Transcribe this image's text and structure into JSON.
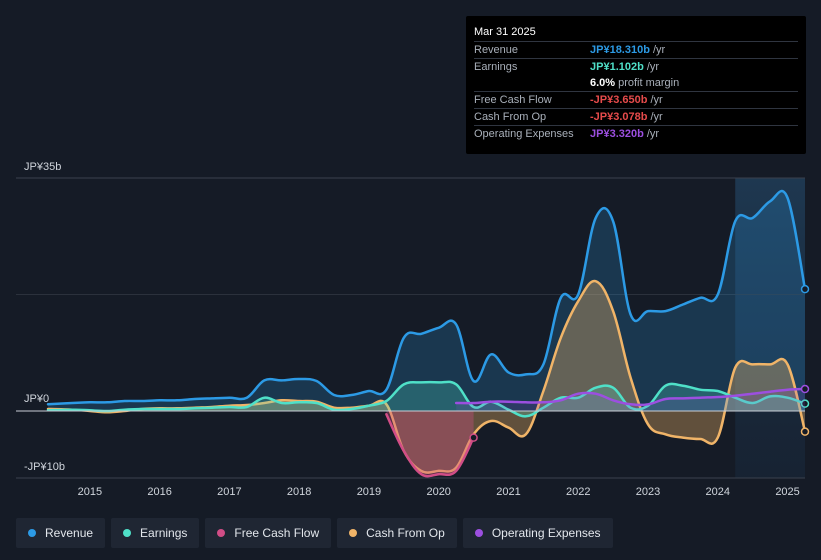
{
  "chart_data": {
    "type": "area",
    "title": "",
    "y_unit_labels": [
      "JP¥35b",
      "JP¥0",
      "-JP¥10b"
    ],
    "ylim": [
      -10,
      35
    ],
    "x_ticks": [
      "2015",
      "2016",
      "2017",
      "2018",
      "2019",
      "2020",
      "2021",
      "2022",
      "2023",
      "2024",
      "2025"
    ],
    "x_tick_values": [
      2015,
      2016,
      2017,
      2018,
      2019,
      2020,
      2021,
      2022,
      2023,
      2024,
      2025
    ],
    "xlim": [
      2014.4,
      2025.25
    ],
    "highlight_start": 2024.25,
    "series": [
      {
        "name": "Revenue",
        "color": "#2c9ae5",
        "fill": true,
        "x": [
          2014.4,
          2014.75,
          2015.0,
          2015.25,
          2015.5,
          2015.75,
          2016.0,
          2016.25,
          2016.5,
          2016.75,
          2017.0,
          2017.25,
          2017.5,
          2017.75,
          2018.0,
          2018.25,
          2018.5,
          2018.75,
          2019.0,
          2019.25,
          2019.5,
          2019.75,
          2020.0,
          2020.25,
          2020.5,
          2020.75,
          2021.0,
          2021.25,
          2021.5,
          2021.75,
          2022.0,
          2022.25,
          2022.5,
          2022.75,
          2023.0,
          2023.25,
          2023.5,
          2023.75,
          2024.0,
          2024.25,
          2024.5,
          2024.75,
          2025.0,
          2025.25
        ],
        "values": [
          1.0,
          1.2,
          1.3,
          1.3,
          1.5,
          1.5,
          1.6,
          1.6,
          1.8,
          1.9,
          2.0,
          2.0,
          4.6,
          4.6,
          4.8,
          4.5,
          2.4,
          2.4,
          3.0,
          3.2,
          11.0,
          11.6,
          12.5,
          13.0,
          4.5,
          8.5,
          5.8,
          5.5,
          7.0,
          17.0,
          17.5,
          29.0,
          28.5,
          14.5,
          15.0,
          15.0,
          16.0,
          17.0,
          17.5,
          28.5,
          29.0,
          31.5,
          32.0,
          18.3
        ]
      },
      {
        "name": "Earnings",
        "color": "#4fe0c8",
        "fill": true,
        "x": [
          2014.4,
          2014.75,
          2015.0,
          2015.25,
          2015.5,
          2015.75,
          2016.0,
          2016.25,
          2016.5,
          2016.75,
          2017.0,
          2017.25,
          2017.5,
          2017.75,
          2018.0,
          2018.25,
          2018.5,
          2018.75,
          2019.0,
          2019.25,
          2019.5,
          2019.75,
          2020.0,
          2020.25,
          2020.5,
          2020.75,
          2021.0,
          2021.25,
          2021.5,
          2021.75,
          2022.0,
          2022.25,
          2022.5,
          2022.75,
          2023.0,
          2023.25,
          2023.5,
          2023.75,
          2024.0,
          2024.25,
          2024.5,
          2024.75,
          2025.0,
          2025.25
        ],
        "values": [
          0.1,
          0.2,
          0.1,
          0.0,
          0.2,
          0.3,
          0.3,
          0.3,
          0.4,
          0.5,
          0.6,
          0.6,
          2.0,
          1.2,
          1.3,
          1.2,
          0.2,
          0.3,
          0.8,
          1.5,
          4.0,
          4.3,
          4.3,
          4.0,
          0.6,
          1.4,
          0.2,
          -0.8,
          0.5,
          2.0,
          2.0,
          3.5,
          3.5,
          0.5,
          0.8,
          3.8,
          3.8,
          3.2,
          3.0,
          2.0,
          1.2,
          2.2,
          2.0,
          1.1
        ]
      },
      {
        "name": "Free Cash Flow",
        "color": "#d14d86",
        "fill": true,
        "x": [
          2019.25,
          2019.5,
          2019.75,
          2020.0,
          2020.25,
          2020.5
        ],
        "values": [
          -0.5,
          -6.0,
          -9.5,
          -9.5,
          -9.0,
          -4.0
        ]
      },
      {
        "name": "Cash From Op",
        "color": "#f0b468",
        "fill": true,
        "x": [
          2014.4,
          2014.75,
          2015.0,
          2015.25,
          2015.5,
          2015.75,
          2016.0,
          2016.25,
          2016.5,
          2016.75,
          2017.0,
          2017.25,
          2017.5,
          2017.75,
          2018.0,
          2018.25,
          2018.5,
          2018.75,
          2019.0,
          2019.25,
          2019.5,
          2019.75,
          2020.0,
          2020.25,
          2020.5,
          2020.75,
          2021.0,
          2021.25,
          2021.5,
          2021.75,
          2022.0,
          2022.25,
          2022.5,
          2022.75,
          2023.0,
          2023.25,
          2023.5,
          2023.75,
          2024.0,
          2024.25,
          2024.5,
          2024.75,
          2025.0,
          2025.25
        ],
        "values": [
          0.3,
          0.2,
          0.0,
          -0.2,
          0.0,
          0.3,
          0.4,
          0.4,
          0.5,
          0.6,
          0.8,
          0.9,
          1.2,
          1.6,
          1.5,
          1.4,
          0.5,
          0.5,
          0.8,
          1.0,
          -6.0,
          -9.0,
          -9.0,
          -8.5,
          -3.5,
          -1.5,
          -2.5,
          -3.5,
          3.0,
          11.0,
          16.5,
          19.5,
          15.0,
          5.0,
          -2.0,
          -3.5,
          -4.0,
          -4.2,
          -4.0,
          6.5,
          7.0,
          7.0,
          7.0,
          -3.1
        ]
      },
      {
        "name": "Operating Expenses",
        "color": "#9c4fe0",
        "fill": true,
        "x": [
          2020.25,
          2020.5,
          2020.75,
          2021.0,
          2021.25,
          2021.5,
          2021.75,
          2022.0,
          2022.25,
          2022.5,
          2022.75,
          2023.0,
          2023.25,
          2023.5,
          2023.75,
          2024.0,
          2024.25,
          2024.5,
          2024.75,
          2025.0,
          2025.25
        ],
        "values": [
          1.2,
          1.2,
          1.4,
          1.4,
          1.3,
          1.3,
          1.6,
          2.6,
          2.6,
          1.6,
          1.0,
          1.0,
          1.8,
          1.9,
          2.0,
          2.1,
          2.3,
          2.6,
          2.9,
          3.2,
          3.3
        ]
      }
    ]
  },
  "tooltip": {
    "date": "Mar 31 2025",
    "rows": [
      {
        "label": "Revenue",
        "value": "JP¥18.310b",
        "unit": "/yr",
        "color": "#2c9ae5"
      },
      {
        "label": "Earnings",
        "value": "JP¥1.102b",
        "unit": "/yr",
        "color": "#4fe0c8"
      },
      {
        "label": "",
        "value": "6.0%",
        "unit": "profit margin",
        "color": "#ffffff"
      },
      {
        "label": "Free Cash Flow",
        "value": "-JP¥3.650b",
        "unit": "/yr",
        "color": "#e64b4b"
      },
      {
        "label": "Cash From Op",
        "value": "-JP¥3.078b",
        "unit": "/yr",
        "color": "#e64b4b"
      },
      {
        "label": "Operating Expenses",
        "value": "JP¥3.320b",
        "unit": "/yr",
        "color": "#9c4fe0"
      }
    ]
  },
  "legend": [
    {
      "label": "Revenue",
      "color": "#2c9ae5"
    },
    {
      "label": "Earnings",
      "color": "#4fe0c8"
    },
    {
      "label": "Free Cash Flow",
      "color": "#d14d86"
    },
    {
      "label": "Cash From Op",
      "color": "#f0b468"
    },
    {
      "label": "Operating Expenses",
      "color": "#9c4fe0"
    }
  ]
}
